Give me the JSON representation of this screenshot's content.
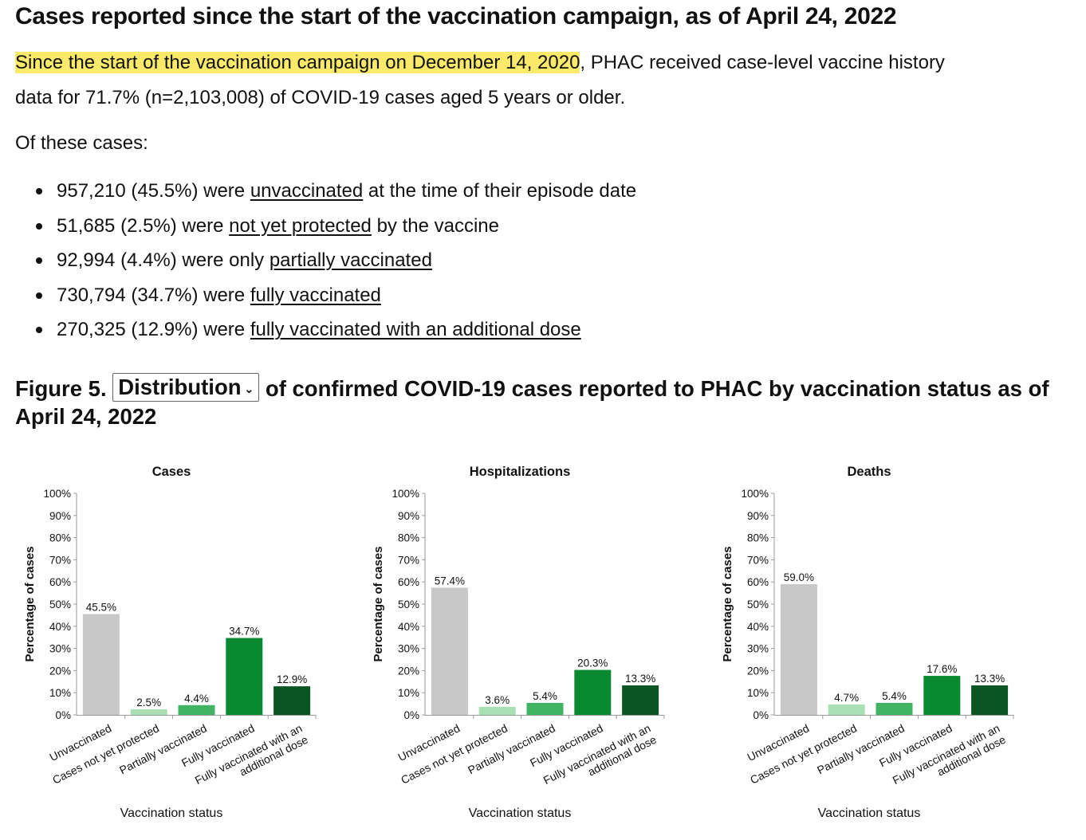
{
  "heading": "Cases reported since the start of the vaccination campaign, as of April 24, 2022",
  "intro": {
    "highlight": "Since the start of the vaccination campaign on December 14, 2020",
    "rest_line1": ", PHAC received case-level vaccine history",
    "line2": "data for 71.7% (n=2,103,008) of COVID-19 cases aged 5 years or older."
  },
  "of_these": "Of these cases:",
  "bullets": [
    {
      "pre": "957,210 (45.5%) were ",
      "link": "unvaccinated",
      "post": " at the time of their episode date"
    },
    {
      "pre": "51,685 (2.5%) were ",
      "link": "not yet protected",
      "post": " by the vaccine"
    },
    {
      "pre": "92,994 (4.4%) were only ",
      "link": "partially vaccinated",
      "post": ""
    },
    {
      "pre": "730,794 (34.7%) were ",
      "link": "fully vaccinated",
      "post": ""
    },
    {
      "pre": "270,325 (12.9%) were ",
      "link": "fully vaccinated with an additional dose",
      "post": ""
    }
  ],
  "figure": {
    "prefix": "Figure 5.",
    "dropdown": "Distribution",
    "dropdown_icon": "chevron-down-icon",
    "suffix": "of confirmed COVID-19 cases reported to PHAC by vaccination status as of April 24, 2022"
  },
  "colors": {
    "Unvaccinated": "#c8c8c8",
    "Cases not yet protected": "#a8e0b4",
    "Partially vaccinated": "#40b463",
    "Fully vaccinated": "#0a8a30",
    "Fully vaccinated with an additional dose": "#0b5522",
    "highlight": "#fbe96a"
  },
  "chart_data": [
    {
      "type": "bar",
      "title": "Cases",
      "xlabel": "Vaccination status",
      "ylabel": "Percentage of cases",
      "ylim": [
        0,
        100
      ],
      "yticks": [
        "0%",
        "10%",
        "20%",
        "30%",
        "40%",
        "50%",
        "60%",
        "70%",
        "80%",
        "90%",
        "100%"
      ],
      "categories": [
        "Unvaccinated",
        "Cases not yet protected",
        "Partially vaccinated",
        "Fully vaccinated",
        "Fully vaccinated with an additional dose"
      ],
      "values": [
        45.5,
        2.5,
        4.4,
        34.7,
        12.9
      ],
      "labels": [
        "45.5%",
        "2.5%",
        "4.4%",
        "34.7%",
        "12.9%"
      ]
    },
    {
      "type": "bar",
      "title": "Hospitalizations",
      "xlabel": "Vaccination status",
      "ylabel": "Percentage of cases",
      "ylim": [
        0,
        100
      ],
      "yticks": [
        "0%",
        "10%",
        "20%",
        "30%",
        "40%",
        "50%",
        "60%",
        "70%",
        "80%",
        "90%",
        "100%"
      ],
      "categories": [
        "Unvaccinated",
        "Cases not yet protected",
        "Partially vaccinated",
        "Fully vaccinated",
        "Fully vaccinated with an additional dose"
      ],
      "values": [
        57.4,
        3.6,
        5.4,
        20.3,
        13.3
      ],
      "labels": [
        "57.4%",
        "3.6%",
        "5.4%",
        "20.3%",
        "13.3%"
      ]
    },
    {
      "type": "bar",
      "title": "Deaths",
      "xlabel": "Vaccination status",
      "ylabel": "Percentage of cases",
      "ylim": [
        0,
        100
      ],
      "yticks": [
        "0%",
        "10%",
        "20%",
        "30%",
        "40%",
        "50%",
        "60%",
        "70%",
        "80%",
        "90%",
        "100%"
      ],
      "categories": [
        "Unvaccinated",
        "Cases not yet protected",
        "Partially vaccinated",
        "Fully vaccinated",
        "Fully vaccinated with an additional dose"
      ],
      "values": [
        59.0,
        4.7,
        5.4,
        17.6,
        13.3
      ],
      "labels": [
        "59.0%",
        "4.7%",
        "5.4%",
        "17.6%",
        "13.3%"
      ]
    }
  ]
}
